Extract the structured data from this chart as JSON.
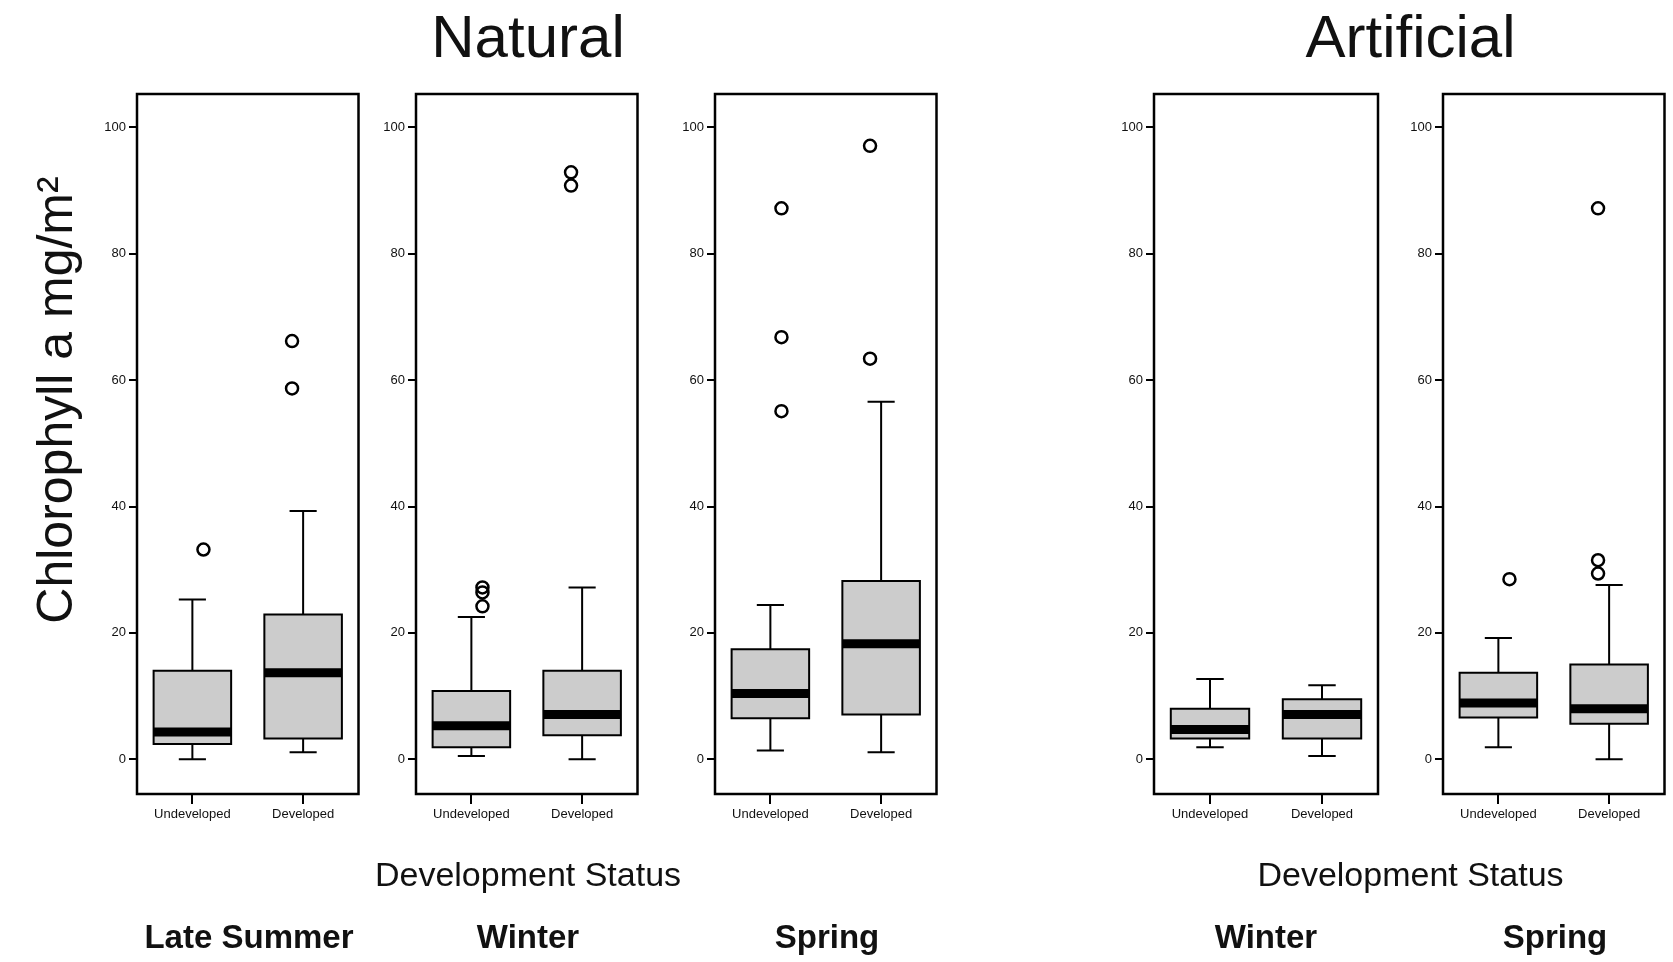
{
  "chart_data": [
    {
      "type": "box",
      "subtitle": "Late Summer",
      "ylabel": "Chlorophyll a mg/m²",
      "categories": [
        "Undeveloped",
        "Developed"
      ],
      "color": "#cccccc",
      "marker": "circle",
      "ylim": [
        -5.5,
        105.3
      ],
      "yticks": [
        0,
        20,
        40,
        60,
        80,
        100
      ],
      "boxes": [
        {
          "low": 0,
          "q1": 2.4,
          "median": 4.3,
          "q3": 14.0,
          "high": 25.3,
          "outliers": [
            33.2
          ]
        },
        {
          "low": 1.1,
          "q1": 3.3,
          "median": 13.7,
          "q3": 22.9,
          "high": 39.3,
          "outliers": [
            58.7,
            66.2
          ]
        }
      ]
    },
    {
      "type": "box",
      "title": "Natural",
      "subtitle": "Winter",
      "xlabel": "Development Status",
      "categories": [
        "Undeveloped",
        "Developed"
      ],
      "color": "#cccccc",
      "marker": "circle",
      "ylim": [
        -5.5,
        105.3
      ],
      "yticks": [
        0,
        20,
        40,
        60,
        80,
        100
      ],
      "boxes": [
        {
          "low": 0.5,
          "q1": 1.9,
          "median": 5.3,
          "q3": 10.8,
          "high": 22.5,
          "outliers": [
            24.2,
            26.4,
            27.2
          ]
        },
        {
          "low": 0,
          "q1": 3.8,
          "median": 7.1,
          "q3": 14.0,
          "high": 27.2,
          "outliers": [
            90.8,
            92.9
          ]
        }
      ]
    },
    {
      "type": "box",
      "subtitle": "Spring",
      "categories": [
        "Undeveloped",
        "Developed"
      ],
      "color": "#cccccc",
      "marker": "circle",
      "ylim": [
        -5.5,
        105.3
      ],
      "yticks": [
        0,
        20,
        40,
        60,
        80,
        100
      ],
      "boxes": [
        {
          "low": 1.4,
          "q1": 6.5,
          "median": 10.4,
          "q3": 17.4,
          "high": 24.4,
          "outliers": [
            55.1,
            66.8,
            87.2
          ]
        },
        {
          "low": 1.1,
          "q1": 7.1,
          "median": 18.3,
          "q3": 28.2,
          "high": 56.6,
          "outliers": [
            63.4,
            97.1
          ]
        }
      ]
    },
    {
      "type": "box",
      "title": "Artificial",
      "subtitle": "Winter",
      "xlabel": "Development Status",
      "categories": [
        "Undeveloped",
        "Developed"
      ],
      "color": "#cccccc",
      "marker": "circle",
      "ylim": [
        -5.5,
        105.3
      ],
      "yticks": [
        0,
        20,
        40,
        60,
        80,
        100
      ],
      "boxes": [
        {
          "low": 1.9,
          "q1": 3.3,
          "median": 4.7,
          "q3": 8.0,
          "high": 12.7
        },
        {
          "low": 0.5,
          "q1": 3.3,
          "median": 7.1,
          "q3": 9.5,
          "high": 11.7
        }
      ]
    },
    {
      "type": "box",
      "subtitle": "Spring",
      "categories": [
        "Undeveloped",
        "Developed"
      ],
      "color": "#cccccc",
      "marker": "circle",
      "ylim": [
        -5.5,
        105.3
      ],
      "yticks": [
        0,
        20,
        40,
        60,
        80,
        100
      ],
      "boxes": [
        {
          "low": 1.9,
          "q1": 6.6,
          "median": 8.9,
          "q3": 13.7,
          "high": 19.2,
          "outliers": [
            28.5
          ]
        },
        {
          "low": 0,
          "q1": 5.6,
          "median": 8.0,
          "q3": 15.0,
          "high": 27.6,
          "outliers": [
            29.4,
            31.5,
            87.2
          ]
        }
      ]
    }
  ]
}
